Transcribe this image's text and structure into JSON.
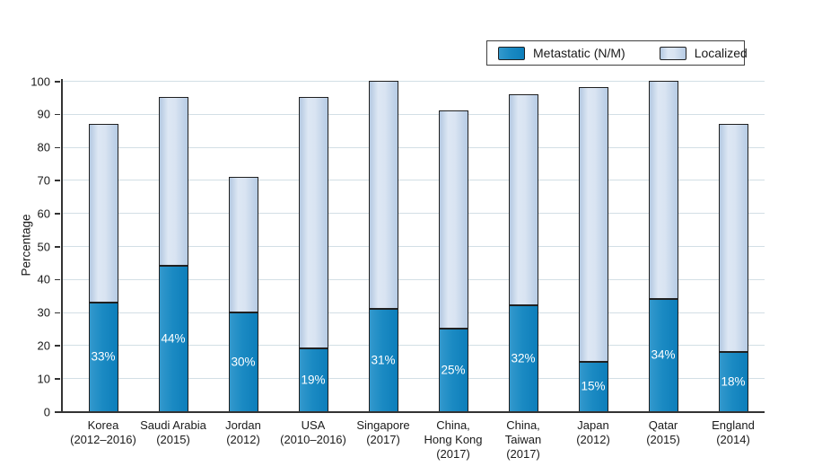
{
  "chart_data": {
    "type": "bar",
    "stacked": true,
    "title": "",
    "xlabel": "",
    "ylabel": "Percentage",
    "ylim": [
      0,
      100
    ],
    "yticks": [
      0,
      10,
      20,
      30,
      40,
      50,
      60,
      70,
      80,
      90,
      100
    ],
    "grid": true,
    "legend_position": "top-right",
    "categories": [
      "Korea\n(2012–2016)",
      "Saudi Arabia\n(2015)",
      "Jordan\n(2012)",
      "USA\n(2010–2016)",
      "Singapore\n(2017)",
      "China,\nHong Kong\n(2017)",
      "China,\nTaiwan\n(2017)",
      "Japan\n(2012)",
      "Qatar\n(2015)",
      "England\n(2014)"
    ],
    "series": [
      {
        "name": "Metastatic (N/M)",
        "color": "#1b8ac3",
        "values": [
          33,
          44,
          30,
          19,
          31,
          25,
          32,
          15,
          34,
          18
        ],
        "data_labels": [
          "33%",
          "44%",
          "30%",
          "19%",
          "31%",
          "25%",
          "32%",
          "15%",
          "34%",
          "18%"
        ]
      },
      {
        "name": "Localized",
        "color": "#d9e4f2",
        "values": [
          54,
          51,
          41,
          76,
          69,
          66,
          64,
          83,
          66,
          69
        ]
      }
    ],
    "stack_totals": [
      87,
      95,
      71,
      95,
      100,
      91,
      96,
      98,
      100,
      87
    ],
    "colors": {
      "bar_border": "#202020",
      "gridline": "#d3dfe5",
      "axis": "#333333",
      "value_label_text": "#ffffff"
    }
  }
}
